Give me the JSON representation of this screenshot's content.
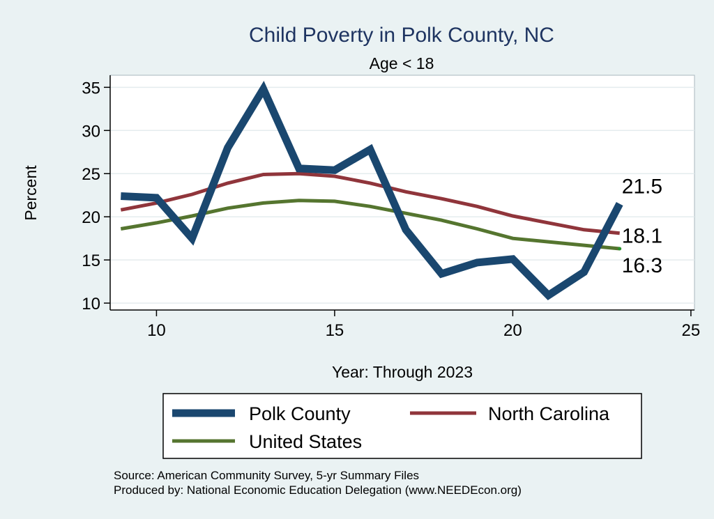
{
  "chart_data": {
    "type": "line",
    "title": "Child Poverty in Polk County, NC",
    "subtitle": "Age < 18",
    "xlabel": "Year: Through 2023",
    "ylabel": "Percent",
    "xlim": [
      8.7,
      25.1
    ],
    "ylim": [
      9.2,
      36.4
    ],
    "xticks": [
      10,
      15,
      20,
      25
    ],
    "yticks": [
      10,
      15,
      20,
      25,
      30,
      35
    ],
    "grid": "horizontal",
    "x": [
      9,
      10,
      11,
      12,
      13,
      14,
      15,
      16,
      17,
      18,
      19,
      20,
      21,
      22,
      23
    ],
    "series": [
      {
        "name": "Polk County",
        "color": "#1a476f",
        "values": [
          22.4,
          22.2,
          17.5,
          28.0,
          34.8,
          25.6,
          25.4,
          27.8,
          18.5,
          13.4,
          14.7,
          15.1,
          10.9,
          13.6,
          21.5
        ],
        "end_label": "21.5"
      },
      {
        "name": "North Carolina",
        "color": "#90353b",
        "values": [
          20.8,
          21.6,
          22.6,
          23.9,
          24.9,
          25.0,
          24.7,
          23.9,
          22.9,
          22.1,
          21.2,
          20.1,
          19.3,
          18.5,
          18.1
        ],
        "end_label": "18.1"
      },
      {
        "name": "United States",
        "color": "#55752f",
        "values": [
          18.6,
          19.3,
          20.1,
          21.0,
          21.6,
          21.9,
          21.8,
          21.2,
          20.4,
          19.6,
          18.6,
          17.5,
          17.1,
          16.7,
          16.3
        ],
        "end_label": "16.3"
      }
    ],
    "legend_position": "bottom",
    "legend": [
      "Polk County",
      "North Carolina",
      "United States"
    ]
  },
  "notes": {
    "source": "Source: American Community Survey, 5-yr Summary Files",
    "produced_by": "Produced by: National Economic Education Delegation (www.NEEDEcon.org)"
  }
}
